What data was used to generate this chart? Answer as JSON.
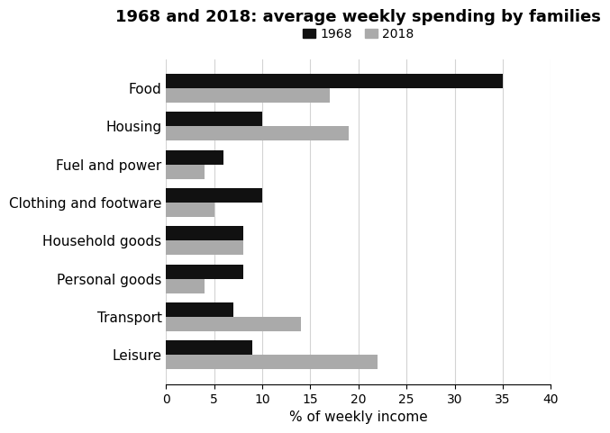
{
  "title": "1968 and 2018: average weekly spending by families",
  "categories": [
    "Food",
    "Housing",
    "Fuel and power",
    "Clothing and footware",
    "Household goods",
    "Personal goods",
    "Transport",
    "Leisure"
  ],
  "values_1968": [
    35,
    10,
    6,
    10,
    8,
    8,
    7,
    9
  ],
  "values_2018": [
    17,
    19,
    4,
    5,
    8,
    4,
    14,
    22
  ],
  "color_1968": "#111111",
  "color_2018": "#aaaaaa",
  "xlabel": "% of weekly income",
  "xlim": [
    0,
    40
  ],
  "xticks": [
    0,
    5,
    10,
    15,
    20,
    25,
    30,
    35,
    40
  ],
  "legend_labels": [
    "1968",
    "2018"
  ],
  "bar_height": 0.38,
  "title_fontsize": 13,
  "label_fontsize": 11,
  "tick_fontsize": 10
}
